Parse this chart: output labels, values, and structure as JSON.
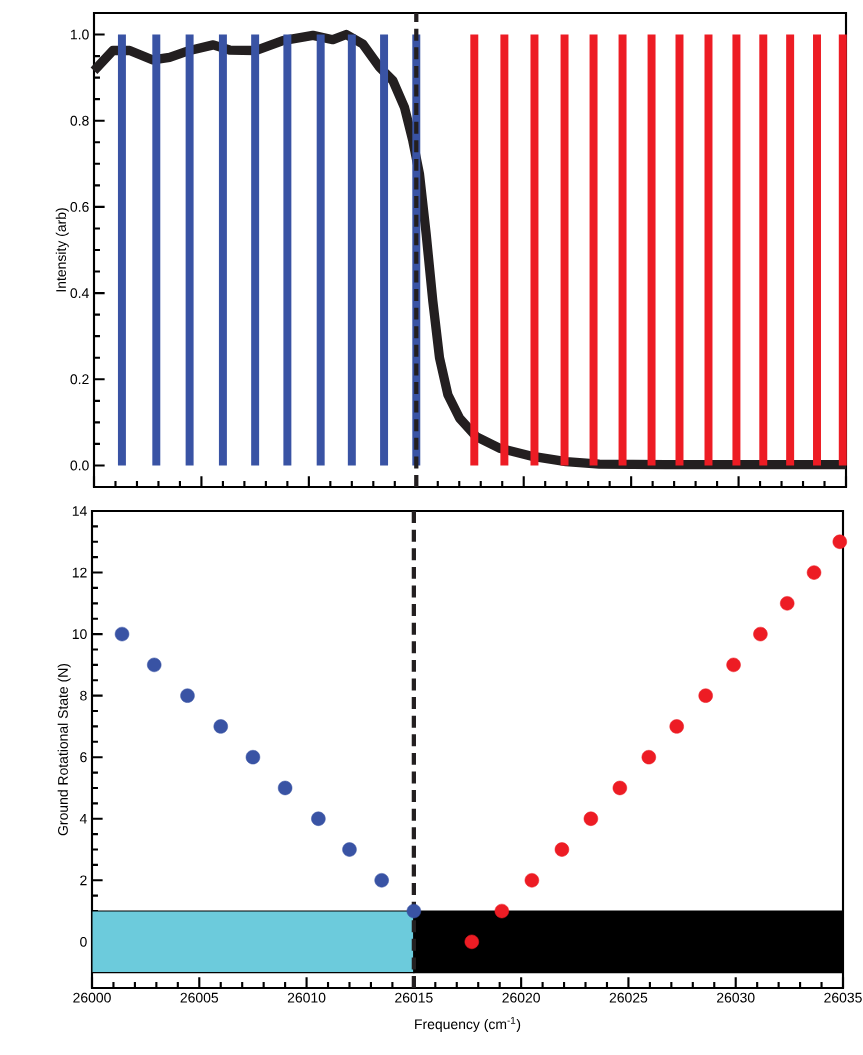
{
  "chart_data": [
    {
      "type": "bar",
      "ylabel": "Intensity (arb)",
      "xlim": [
        26000,
        26035
      ],
      "xticks": [
        26000,
        26005,
        26010,
        26015,
        26020,
        26025,
        26030,
        26035
      ],
      "ylim": [
        -0.05,
        1.05
      ],
      "yticks": [
        {
          "value": 0,
          "label": "0.0"
        },
        {
          "value": 0.2,
          "label": "0.2"
        },
        {
          "value": 0.4,
          "label": "0.4"
        },
        {
          "value": 0.6,
          "label": "0.6"
        },
        {
          "value": 0.8,
          "label": "0.8"
        },
        {
          "value": 1,
          "label": "1.0"
        }
      ],
      "tick_labels": "y",
      "ref_lines": [
        {
          "axis": "x",
          "value": 26015,
          "color": "#231f20",
          "line_style": "dashed"
        }
      ],
      "series": [
        {
          "color": "#3953a4",
          "x": [
            26001.3,
            26002.9,
            26004.45,
            26006.0,
            26007.5,
            26009.0,
            26010.55,
            26012.0,
            26013.5,
            26015.0
          ],
          "values": [
            1,
            1,
            1,
            1,
            1,
            1,
            1,
            1,
            1,
            1
          ]
        },
        {
          "color": "#ed1c24",
          "x": [
            26017.7,
            26019.1,
            26020.5,
            26021.9,
            26023.25,
            26024.6,
            26025.95,
            26027.25,
            26028.6,
            26029.9,
            26031.15,
            26032.4,
            26033.65,
            26034.85
          ],
          "values": [
            1,
            1,
            1,
            1,
            1,
            1,
            1,
            1,
            1,
            1,
            1,
            1,
            1,
            1
          ]
        },
        {
          "type": "line",
          "color": "#231f20",
          "x": [
            26000.0,
            26000.88,
            26001.66,
            26002.74,
            26003.52,
            26004.45,
            26005.55,
            26006.31,
            26007.55,
            26008.79,
            26010.19,
            26011.12,
            26011.74,
            26012.51,
            26013.29,
            26013.91,
            26014.45,
            26014.84,
            26015.15,
            26015.46,
            26015.77,
            26016.08,
            26016.47,
            26017.01,
            26017.79,
            26018.87,
            26020.42,
            26021.97,
            26023.52,
            26026.62,
            26035.0
          ],
          "values": [
            0.916,
            0.963,
            0.963,
            0.941,
            0.947,
            0.963,
            0.976,
            0.964,
            0.963,
            0.986,
            0.998,
            0.988,
            1.0,
            0.978,
            0.924,
            0.893,
            0.831,
            0.753,
            0.676,
            0.537,
            0.381,
            0.25,
            0.164,
            0.11,
            0.067,
            0.04,
            0.021,
            0.009,
            0.003,
            0.002,
            0.002
          ]
        }
      ]
    },
    {
      "type": "scatter",
      "xlabel": "Frequency (cm$^{-1}$)",
      "ylabel": "Ground Rotational State (N)",
      "xlim": [
        26000,
        26035
      ],
      "xticks": [
        26000,
        26005,
        26010,
        26015,
        26020,
        26025,
        26030,
        26035
      ],
      "ylim": [
        -1.5,
        14
      ],
      "yticks": [
        0,
        2,
        4,
        6,
        8,
        10,
        12,
        14
      ],
      "marker": "circle",
      "ref_lines": [
        {
          "axis": "x",
          "value": 26015,
          "color": "#231f20",
          "line_style": "dashed"
        }
      ],
      "bands": [
        {
          "axis": "y",
          "from": -1,
          "to": 1,
          "color": "#6ccbdc"
        },
        {
          "axis": "y",
          "from": -1,
          "to": 1,
          "color": "#000000"
        }
      ],
      "series": [
        {
          "color": "#3953a4",
          "x": [
            26001.4,
            26002.9,
            26004.45,
            26006.0,
            26007.5,
            26009.0,
            26010.55,
            26012.0,
            26013.5,
            26015.0
          ],
          "values": [
            10,
            9,
            8,
            7,
            6,
            5,
            4,
            3,
            2,
            1
          ]
        },
        {
          "color": "#ed1c24",
          "x": [
            26017.7,
            26019.1,
            26020.5,
            26021.9,
            26023.25,
            26024.6,
            26025.95,
            26027.25,
            26028.6,
            26029.9,
            26031.15,
            26032.4,
            26033.65,
            26034.85
          ],
          "values": [
            0,
            1,
            2,
            3,
            4,
            5,
            6,
            7,
            8,
            9,
            10,
            11,
            12,
            13
          ]
        }
      ]
    }
  ]
}
